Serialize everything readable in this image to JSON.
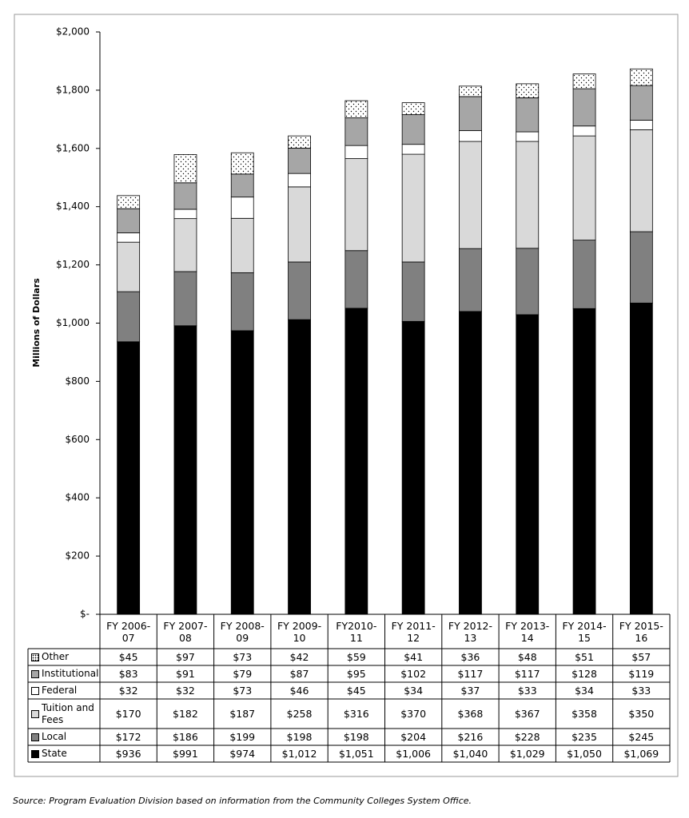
{
  "chart_data": {
    "type": "stacked_bar",
    "y_label": "Millions of Dollars",
    "source": "Source: Program Evaluation Division based on information from the Community Colleges System Office.",
    "categories": [
      "FY 2006-07",
      "FY 2007-08",
      "FY 2008-09",
      "FY 2009-10",
      "FY2010-11",
      "FY 2011-12",
      "FY 2012-13",
      "FY 2013-14",
      "FY 2014-15",
      "FY 2015-16"
    ],
    "ylim": [
      0,
      2000
    ],
    "yticks": [
      {
        "value": 0,
        "label": "$-"
      },
      {
        "value": 200,
        "label": "$200"
      },
      {
        "value": 400,
        "label": "$400"
      },
      {
        "value": 600,
        "label": "$600"
      },
      {
        "value": 800,
        "label": "$800"
      },
      {
        "value": 1000,
        "label": "$1,000"
      },
      {
        "value": 1200,
        "label": "$1,200"
      },
      {
        "value": 1400,
        "label": "$1,400"
      },
      {
        "value": 1600,
        "label": "$1,600"
      },
      {
        "value": 1800,
        "label": "$1,800"
      },
      {
        "value": 2000,
        "label": "$2,000"
      }
    ],
    "series": [
      {
        "name": "State",
        "color": "#000000",
        "values": [
          936,
          991,
          974,
          1012,
          1051,
          1006,
          1040,
          1029,
          1050,
          1069
        ],
        "value_labels": [
          "$936",
          "$991",
          "$974",
          "$1,012",
          "$1,051",
          "$1,006",
          "$1,040",
          "$1,029",
          "$1,050",
          "$1,069"
        ]
      },
      {
        "name": "Local",
        "color": "#808080",
        "values": [
          172,
          186,
          199,
          198,
          198,
          204,
          216,
          228,
          235,
          245
        ],
        "value_labels": [
          "$172",
          "$186",
          "$199",
          "$198",
          "$198",
          "$204",
          "$216",
          "$228",
          "$235",
          "$245"
        ]
      },
      {
        "name": "Tuition and Fees",
        "color": "#d9d9d9",
        "values": [
          170,
          182,
          187,
          258,
          316,
          370,
          368,
          367,
          358,
          350
        ],
        "value_labels": [
          "$170",
          "$182",
          "$187",
          "$258",
          "$316",
          "$370",
          "$368",
          "$367",
          "$358",
          "$350"
        ]
      },
      {
        "name": "Federal",
        "color": "#ffffff",
        "values": [
          32,
          32,
          73,
          46,
          45,
          34,
          37,
          33,
          34,
          33
        ],
        "value_labels": [
          "$32",
          "$32",
          "$73",
          "$46",
          "$45",
          "$34",
          "$37",
          "$33",
          "$34",
          "$33"
        ]
      },
      {
        "name": "Institutional",
        "color": "#a6a6a6",
        "values": [
          83,
          91,
          79,
          87,
          95,
          102,
          117,
          117,
          128,
          119
        ],
        "value_labels": [
          "$83",
          "$91",
          "$79",
          "$87",
          "$95",
          "$102",
          "$117",
          "$117",
          "$128",
          "$119"
        ]
      },
      {
        "name": "Other",
        "color": "#ffffff",
        "pattern": "dots",
        "values": [
          45,
          97,
          73,
          42,
          59,
          41,
          36,
          48,
          51,
          57
        ],
        "value_labels": [
          "$45",
          "$97",
          "$73",
          "$42",
          "$59",
          "$41",
          "$36",
          "$48",
          "$51",
          "$57"
        ]
      }
    ]
  }
}
